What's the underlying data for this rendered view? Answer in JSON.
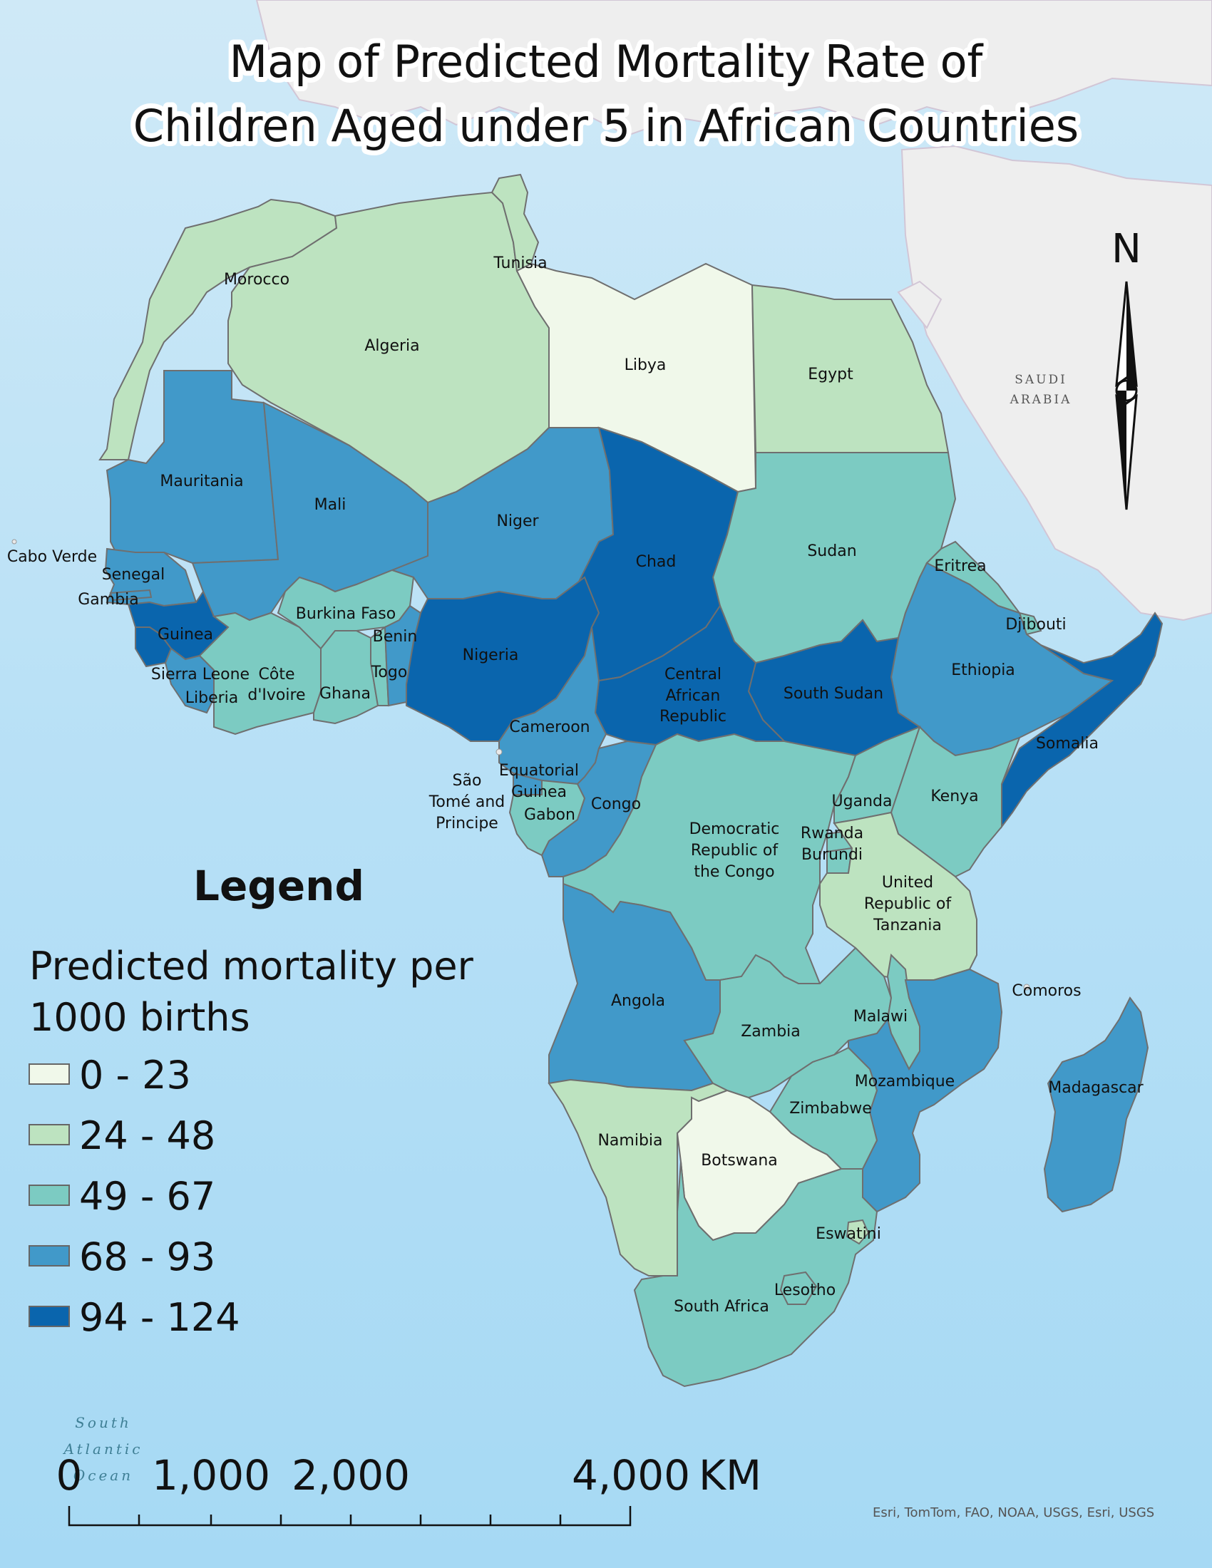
{
  "title": {
    "line1": "Map of Predicted Mortality Rate of",
    "line2": "Children Aged under 5 in African Countries"
  },
  "legend": {
    "heading": "Legend",
    "subtitle_line1": "Predicted mortality per",
    "subtitle_line2": "1000 births",
    "classes": [
      {
        "label": "0 - 23",
        "color": "#f0f8ea"
      },
      {
        "label": "24 - 48",
        "color": "#bde3c0"
      },
      {
        "label": "49 - 67",
        "color": "#7ccbc2"
      },
      {
        "label": "68 - 93",
        "color": "#4199c9"
      },
      {
        "label": "94 - 124",
        "color": "#0a65ad"
      }
    ]
  },
  "north_arrow": {
    "label": "N"
  },
  "scale_bar": {
    "labels": [
      "0",
      "1,000",
      "2,000",
      "4,000"
    ],
    "unit": "KM"
  },
  "basemap_labels": {
    "saudi_line1": "SAUDI",
    "saudi_line2": "ARABIA",
    "ocean_line1": "South",
    "ocean_line2": "Atlantic",
    "ocean_line3": "Ocean"
  },
  "credits": "Esri, TomTom, FAO, NOAA, USGS, Esri, USGS",
  "countries": [
    {
      "name": "Morocco",
      "class": 1
    },
    {
      "name": "Algeria",
      "class": 1
    },
    {
      "name": "Tunisia",
      "class": 1
    },
    {
      "name": "Libya",
      "class": 0
    },
    {
      "name": "Egypt",
      "class": 1
    },
    {
      "name": "Mauritania",
      "class": 3
    },
    {
      "name": "Mali",
      "class": 3
    },
    {
      "name": "Niger",
      "class": 3
    },
    {
      "name": "Chad",
      "class": 4
    },
    {
      "name": "Sudan",
      "class": 2
    },
    {
      "name": "Eritrea",
      "class": 2
    },
    {
      "name": "Djibouti",
      "class": 2
    },
    {
      "name": "Ethiopia",
      "class": 3
    },
    {
      "name": "Somalia",
      "class": 4
    },
    {
      "name": "South Sudan",
      "class": 4
    },
    {
      "name": "Central African Republic",
      "class": 4
    },
    {
      "name": "Nigeria",
      "class": 4
    },
    {
      "name": "Senegal",
      "class": 3
    },
    {
      "name": "Gambia",
      "class": 3
    },
    {
      "name": "Guinea",
      "class": 4
    },
    {
      "name": "Sierra Leone",
      "class": 4
    },
    {
      "name": "Liberia",
      "class": 3
    },
    {
      "name": "Côte d'Ivoire",
      "class": 2
    },
    {
      "name": "Burkina Faso",
      "class": 2
    },
    {
      "name": "Ghana",
      "class": 2
    },
    {
      "name": "Togo",
      "class": 2
    },
    {
      "name": "Benin",
      "class": 3
    },
    {
      "name": "Cameroon",
      "class": 3
    },
    {
      "name": "Equatorial Guinea",
      "class": 3
    },
    {
      "name": "Gabon",
      "class": 2
    },
    {
      "name": "Congo",
      "class": 3
    },
    {
      "name": "Democratic Republic of the Congo",
      "class": 2
    },
    {
      "name": "Uganda",
      "class": 2
    },
    {
      "name": "Kenya",
      "class": 2
    },
    {
      "name": "Rwanda",
      "class": 2
    },
    {
      "name": "Burundi",
      "class": 2
    },
    {
      "name": "United Republic of Tanzania",
      "class": 1
    },
    {
      "name": "Angola",
      "class": 3
    },
    {
      "name": "Zambia",
      "class": 2
    },
    {
      "name": "Malawi",
      "class": 2
    },
    {
      "name": "Mozambique",
      "class": 3
    },
    {
      "name": "Zimbabwe",
      "class": 2
    },
    {
      "name": "Namibia",
      "class": 1
    },
    {
      "name": "Botswana",
      "class": 0
    },
    {
      "name": "South Africa",
      "class": 2
    },
    {
      "name": "Lesotho",
      "class": 2
    },
    {
      "name": "Eswatini",
      "class": 1
    },
    {
      "name": "Madagascar",
      "class": 3
    },
    {
      "name": "Cabo Verde",
      "class": null
    },
    {
      "name": "São Tomé and Principe",
      "class": null
    },
    {
      "name": "Comoros",
      "class": null
    }
  ],
  "labels": {
    "morocco": "Morocco",
    "algeria": "Algeria",
    "tunisia": "Tunisia",
    "libya": "Libya",
    "egypt": "Egypt",
    "mauritania": "Mauritania",
    "mali": "Mali",
    "niger": "Niger",
    "chad": "Chad",
    "sudan": "Sudan",
    "eritrea": "Eritrea",
    "djibouti": "Djibouti",
    "ethiopia": "Ethiopia",
    "somalia": "Somalia",
    "south_sudan": "South Sudan",
    "car_1": "Central",
    "car_2": "African",
    "car_3": "Republic",
    "nigeria": "Nigeria",
    "cabo_verde": "Cabo Verde",
    "senegal": "Senegal",
    "gambia": "Gambia",
    "guinea": "Guinea",
    "sierra_leone": "Sierra Leone",
    "liberia": "Liberia",
    "civ_1": "Côte",
    "civ_2": "d'Ivoire",
    "burkina": "Burkina Faso",
    "ghana": "Ghana",
    "togo": "Togo",
    "benin": "Benin",
    "cameroon": "Cameroon",
    "eq_1": "Equatorial",
    "eq_2": "Guinea",
    "sao_1": "São",
    "sao_2": "Tomé and",
    "sao_3": "Principe",
    "gabon": "Gabon",
    "congo": "Congo",
    "drc_1": "Democratic",
    "drc_2": "Republic of",
    "drc_3": "the Congo",
    "uganda": "Uganda",
    "kenya": "Kenya",
    "rwanda": "Rwanda",
    "burundi": "Burundi",
    "tz_1": "United",
    "tz_2": "Republic of",
    "tz_3": "Tanzania",
    "angola": "Angola",
    "zambia": "Zambia",
    "malawi": "Malawi",
    "comoros": "Comoros",
    "mozambique": "Mozambique",
    "madagascar": "Madagascar",
    "zimbabwe": "Zimbabwe",
    "namibia": "Namibia",
    "botswana": "Botswana",
    "eswatini": "Eswatini",
    "lesotho": "Lesotho",
    "south_africa": "South Africa"
  }
}
